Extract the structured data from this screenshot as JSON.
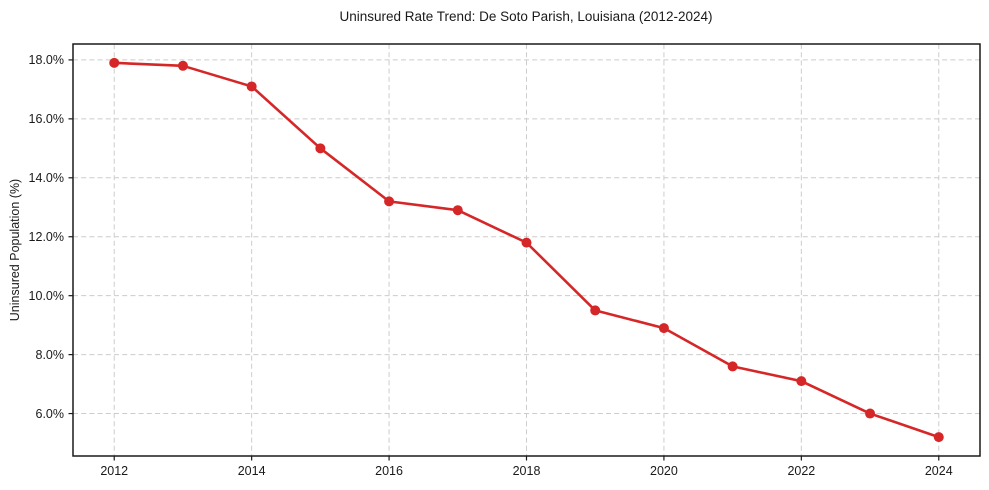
{
  "figure": {
    "background": "#ffffff"
  },
  "chart_data": {
    "type": "line",
    "title": "Uninsured Rate Trend: De Soto Parish, Louisiana (2012-2024)",
    "xlabel": "",
    "ylabel": "Uninsured Population (%)",
    "x": [
      2012,
      2013,
      2014,
      2015,
      2016,
      2017,
      2018,
      2019,
      2020,
      2021,
      2022,
      2023,
      2024
    ],
    "series": [
      {
        "values": [
          17.9,
          17.8,
          17.1,
          15.0,
          13.2,
          12.9,
          11.8,
          9.5,
          8.9,
          7.6,
          7.1,
          6.0,
          5.2
        ]
      }
    ],
    "xlim": [
      2011.4,
      2024.6
    ],
    "ylim": [
      4.56,
      18.54
    ],
    "xticks": {
      "values": [
        2012,
        2014,
        2016,
        2018,
        2020,
        2022,
        2024
      ],
      "labels": [
        "2012",
        "2014",
        "2016",
        "2018",
        "2020",
        "2022",
        "2024"
      ]
    },
    "yticks": {
      "values": [
        6,
        8,
        10,
        12,
        14,
        16,
        18
      ],
      "labels": [
        "6.0%",
        "8.0%",
        "10.0%",
        "12.0%",
        "14.0%",
        "16.0%",
        "18.0%"
      ]
    },
    "grid": true,
    "grid_style": "dashed",
    "legend_position": "none",
    "marker": "circle",
    "line_color": "#d62728",
    "marker_color": "#d62728",
    "grid_color": "#cccccc",
    "spine_color": "#1a1a1a",
    "text_color": "#1a1a1a"
  }
}
